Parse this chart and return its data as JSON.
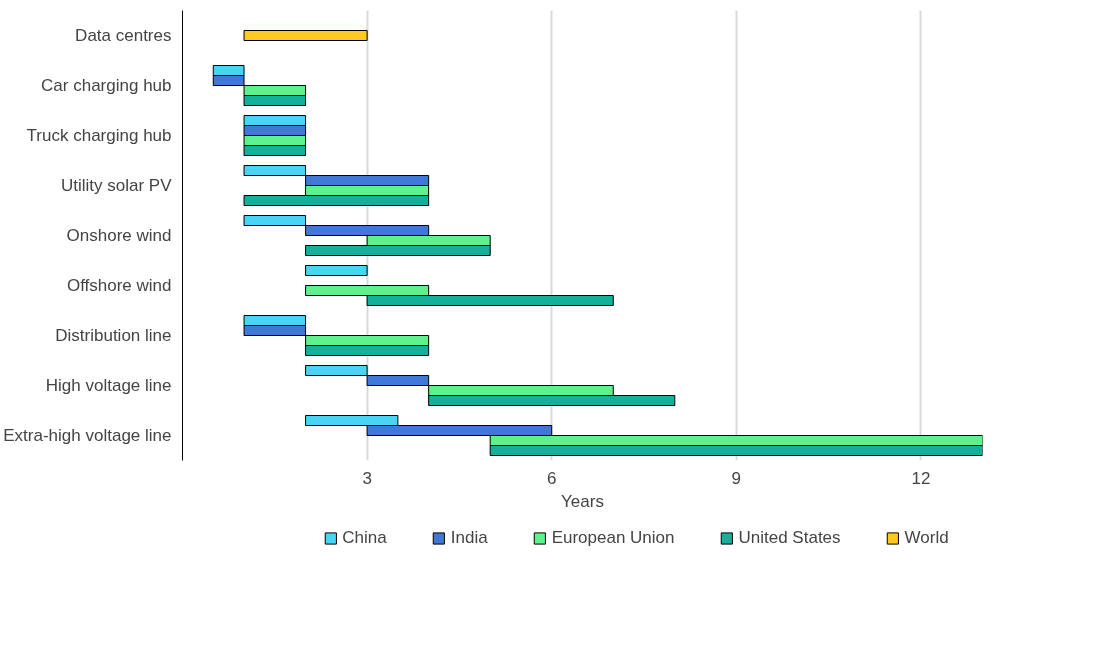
{
  "chart_data": {
    "type": "bar",
    "orientation": "horizontal",
    "xlabel": "Years",
    "categories": [
      "Data centres",
      "Car charging hub",
      "Truck charging hub",
      "Utility solar PV",
      "Onshore wind",
      "Offshore wind",
      "Distribution line",
      "High voltage line",
      "Extra-high voltage line"
    ],
    "series": [
      {
        "name": "China",
        "color": "#47d4f5",
        "base": [
          null,
          0.5,
          1,
          1,
          1,
          2,
          1,
          2,
          2
        ],
        "values": [
          null,
          0.5,
          1,
          1,
          1,
          1,
          1,
          1,
          1.5
        ]
      },
      {
        "name": "India",
        "color": "#3f78d6",
        "base": [
          null,
          0.5,
          1,
          2,
          2,
          null,
          1,
          3,
          3
        ],
        "values": [
          null,
          0.5,
          1,
          2,
          2,
          null,
          1,
          1,
          3
        ]
      },
      {
        "name": "European Union",
        "color": "#5ef28c",
        "base": [
          null,
          1,
          1,
          2,
          3,
          2,
          2,
          4,
          5
        ],
        "values": [
          null,
          1,
          1,
          2,
          2,
          2,
          2,
          3,
          8
        ]
      },
      {
        "name": "United States",
        "color": "#14b09a",
        "base": [
          null,
          1,
          1,
          1,
          2,
          3,
          2,
          4,
          5
        ],
        "values": [
          null,
          1,
          1,
          3,
          3,
          4,
          2,
          4,
          8
        ]
      },
      {
        "name": "World",
        "color": "#ffc91f",
        "base": [
          1,
          null,
          null,
          null,
          null,
          null,
          null,
          null,
          null
        ],
        "values": [
          2,
          null,
          null,
          null,
          null,
          null,
          null,
          null,
          null
        ]
      }
    ],
    "xlim": [
      0,
      13
    ],
    "xticks": [
      3,
      6,
      9,
      12
    ],
    "grid": "x",
    "legend": "bottom"
  }
}
